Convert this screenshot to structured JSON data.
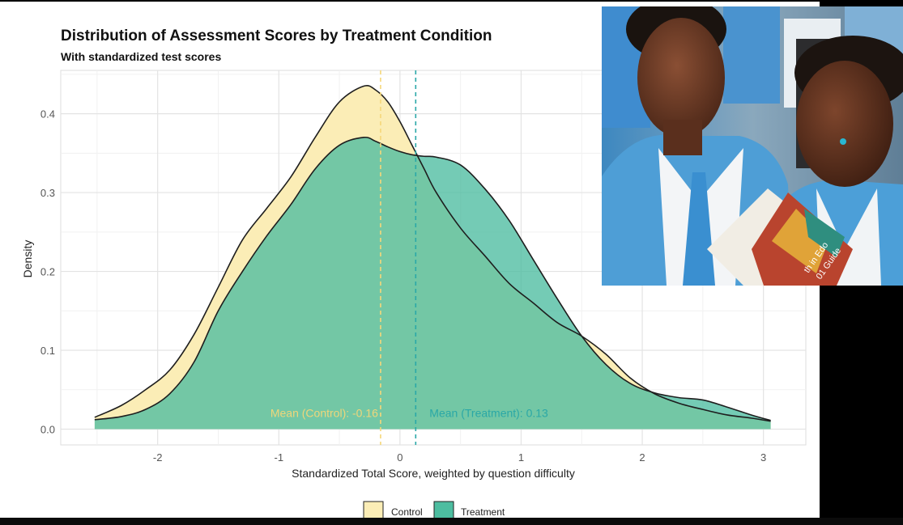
{
  "colors": {
    "control_fill": "#FBEDB6",
    "treatment_fill": "#4DBDA0",
    "treatment_overlap": "#7ACFA8",
    "control_mean_line": "#F5D77A",
    "treatment_mean_line": "#2AA7A8",
    "control_mean_text": "#EFD67A",
    "treatment_mean_text": "#2AA8A6"
  },
  "photo": {
    "book_text_1": "th in Edo",
    "book_text_2": "01 Guide"
  },
  "chart_data": {
    "type": "area",
    "title": "Distribution of Assessment Scores by Treatment Condition",
    "subtitle": "With standardized test scores",
    "xlabel": "Standardized Total Score, weighted by question difficulty",
    "ylabel": "Density",
    "xlim": [
      -2.8,
      3.35
    ],
    "ylim": [
      -0.02,
      0.455
    ],
    "x_ticks": [
      -2,
      -1,
      0,
      1,
      2,
      3
    ],
    "y_ticks": [
      0.0,
      0.1,
      0.2,
      0.3,
      0.4
    ],
    "x_tick_labels": [
      "-2",
      "-1",
      "0",
      "1",
      "2",
      "3"
    ],
    "y_tick_labels": [
      "0.0",
      "0.1",
      "0.2",
      "0.3",
      "0.4"
    ],
    "grid": true,
    "legend_position": "bottom",
    "series": [
      {
        "name": "Control",
        "x": [
          -2.52,
          -2.3,
          -2.1,
          -1.9,
          -1.7,
          -1.5,
          -1.3,
          -1.1,
          -0.9,
          -0.7,
          -0.5,
          -0.3,
          -0.2,
          -0.1,
          0.0,
          0.1,
          0.2,
          0.3,
          0.5,
          0.7,
          0.9,
          1.1,
          1.3,
          1.5,
          1.7,
          1.9,
          2.1,
          2.3,
          2.5,
          2.7,
          2.9,
          3.06
        ],
        "y": [
          0.015,
          0.03,
          0.05,
          0.075,
          0.12,
          0.18,
          0.24,
          0.28,
          0.32,
          0.37,
          0.415,
          0.435,
          0.43,
          0.415,
          0.39,
          0.36,
          0.33,
          0.3,
          0.255,
          0.22,
          0.185,
          0.16,
          0.135,
          0.118,
          0.095,
          0.065,
          0.045,
          0.033,
          0.025,
          0.018,
          0.014,
          0.01
        ],
        "mean": -0.16,
        "mean_label": "Mean (Control): -0.16"
      },
      {
        "name": "Treatment",
        "x": [
          -2.52,
          -2.3,
          -2.1,
          -1.9,
          -1.7,
          -1.5,
          -1.3,
          -1.1,
          -0.9,
          -0.7,
          -0.5,
          -0.3,
          -0.2,
          -0.1,
          0.0,
          0.1,
          0.2,
          0.3,
          0.5,
          0.7,
          0.9,
          1.1,
          1.3,
          1.5,
          1.7,
          1.9,
          2.1,
          2.3,
          2.5,
          2.7,
          2.9,
          3.06
        ],
        "y": [
          0.012,
          0.016,
          0.025,
          0.045,
          0.085,
          0.15,
          0.2,
          0.245,
          0.285,
          0.33,
          0.36,
          0.37,
          0.365,
          0.358,
          0.352,
          0.348,
          0.346,
          0.345,
          0.335,
          0.305,
          0.265,
          0.215,
          0.165,
          0.118,
          0.082,
          0.058,
          0.046,
          0.04,
          0.037,
          0.028,
          0.018,
          0.011
        ],
        "mean": 0.13,
        "mean_label": "Mean (Treatment): 0.13"
      }
    ]
  }
}
